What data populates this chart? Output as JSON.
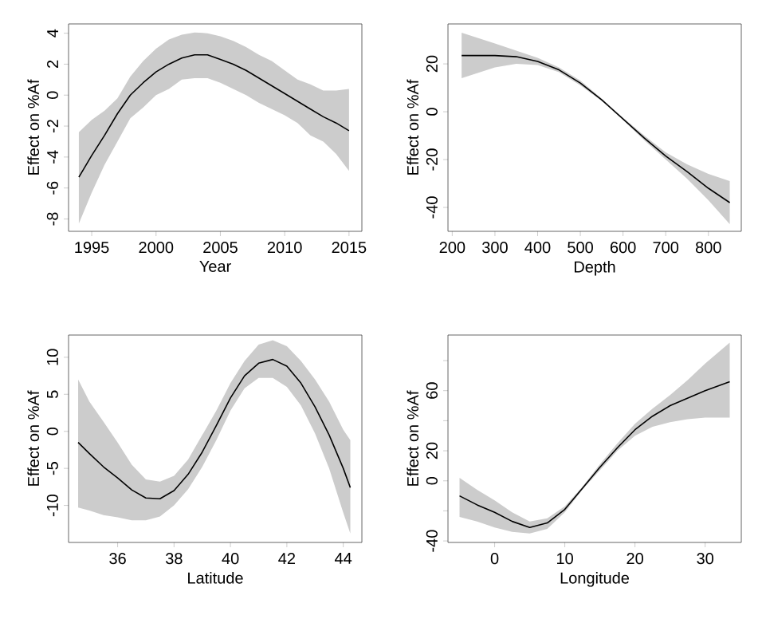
{
  "chart_data": [
    {
      "type": "line",
      "xlabel": "Year",
      "ylabel": "Effect on %Af",
      "xlim": [
        1993.2,
        2016
      ],
      "ylim": [
        -8.8,
        4.6
      ],
      "xticks": [
        1995,
        2000,
        2005,
        2010,
        2015
      ],
      "yticks": [
        -8,
        -6,
        -4,
        -2,
        0,
        2,
        4
      ],
      "series": [
        {
          "color": "#000000",
          "x": [
            1994,
            1995,
            1996,
            1997,
            1998,
            1999,
            2000,
            2001,
            2002,
            2003,
            2004,
            2005,
            2006,
            2007,
            2008,
            2009,
            2010,
            2011,
            2012,
            2013,
            2014,
            2015
          ],
          "values": [
            -5.3,
            -3.9,
            -2.6,
            -1.2,
            0,
            0.8,
            1.5,
            2.0,
            2.4,
            2.6,
            2.6,
            2.3,
            2.0,
            1.6,
            1.1,
            0.6,
            0.1,
            -0.4,
            -0.9,
            -1.4,
            -1.8,
            -2.3
          ],
          "upper": [
            -2.4,
            -1.6,
            -1.0,
            -0.2,
            1.2,
            2.2,
            3.0,
            3.6,
            3.9,
            4.05,
            4.0,
            3.8,
            3.5,
            3.1,
            2.6,
            2.2,
            1.6,
            1.0,
            0.7,
            0.3,
            0.3,
            0.4
          ],
          "lower": [
            -8.3,
            -6.3,
            -4.5,
            -3.0,
            -1.5,
            -0.8,
            0.0,
            0.4,
            1.0,
            1.1,
            1.1,
            0.8,
            0.4,
            0.0,
            -0.5,
            -0.9,
            -1.3,
            -1.8,
            -2.6,
            -3.0,
            -3.8,
            -4.9
          ]
        }
      ]
    },
    {
      "type": "line",
      "xlabel": "Depth",
      "ylabel": "Effect on %Af",
      "xlim": [
        190,
        877
      ],
      "ylim": [
        -50,
        36.7
      ],
      "xticks": [
        200,
        300,
        400,
        500,
        600,
        700,
        800
      ],
      "yticks": [
        -40,
        -20,
        0,
        20
      ],
      "series": [
        {
          "color": "#000000",
          "x": [
            222,
            300,
            350,
            400,
            450,
            500,
            550,
            600,
            650,
            700,
            750,
            800,
            850
          ],
          "values": [
            23.5,
            23.5,
            23,
            21,
            17.5,
            12,
            5,
            -3,
            -11,
            -18.5,
            -25,
            -32,
            -38
          ],
          "upper": [
            33,
            28.5,
            25.5,
            22.5,
            18.5,
            13,
            5.5,
            -2.5,
            -10,
            -17,
            -22,
            -26,
            -29
          ],
          "lower": [
            14,
            18.5,
            20,
            19.5,
            16.5,
            11,
            4.5,
            -3.5,
            -12,
            -20,
            -28,
            -37,
            -47
          ]
        }
      ]
    },
    {
      "type": "line",
      "xlabel": "Latitude",
      "ylabel": "Effect on %Af",
      "xlim": [
        34.26,
        44.66
      ],
      "ylim": [
        -15,
        13
      ],
      "xticks": [
        36,
        38,
        40,
        42,
        44
      ],
      "yticks": [
        -10,
        -5,
        0,
        5,
        10
      ],
      "series": [
        {
          "color": "#000000",
          "x": [
            34.6,
            35,
            35.5,
            36,
            36.5,
            37,
            37.5,
            38,
            38.5,
            39,
            39.5,
            40,
            40.5,
            41,
            41.5,
            42,
            42.5,
            43,
            43.5,
            44,
            44.25
          ],
          "values": [
            -1.5,
            -3,
            -4.8,
            -6.3,
            -7.9,
            -9,
            -9.1,
            -8,
            -5.8,
            -2.8,
            0.8,
            4.5,
            7.5,
            9.2,
            9.7,
            8.8,
            6.5,
            3.3,
            -0.5,
            -5,
            -7.6
          ],
          "upper": [
            7,
            4,
            1.3,
            -1.5,
            -4.5,
            -6.5,
            -6.8,
            -6,
            -3.8,
            -0.5,
            2.8,
            6.5,
            9.5,
            11.7,
            12.3,
            11.5,
            9.5,
            7,
            4,
            0.2,
            -1.2
          ],
          "lower": [
            -10.3,
            -10.7,
            -11.3,
            -11.6,
            -12,
            -12,
            -11.5,
            -10,
            -7.8,
            -4.8,
            -1.2,
            2.8,
            5.8,
            7.2,
            7.2,
            6,
            3.5,
            -0.3,
            -5,
            -11,
            -13.8
          ]
        }
      ]
    },
    {
      "type": "line",
      "xlabel": "Longitude",
      "ylabel": "Effect on %Af",
      "xlim": [
        -6.65,
        35.15
      ],
      "ylim": [
        -41,
        97
      ],
      "xticks": [
        0,
        10,
        20,
        30
      ],
      "yticks": [
        -40,
        {
          "value": -20,
          "label": null
        },
        0,
        20,
        {
          "value": 40,
          "label": null
        },
        60,
        {
          "value": 80,
          "label": null
        }
      ],
      "series": [
        {
          "color": "#000000",
          "x": [
            -5,
            -2.5,
            0,
            2.5,
            5,
            7.5,
            10,
            12.5,
            15,
            17.5,
            20,
            22.5,
            25,
            27.5,
            30,
            33.5
          ],
          "values": [
            -10,
            -16,
            -21,
            -27,
            -31,
            -28,
            -19,
            -5,
            9,
            22,
            34,
            43,
            50,
            55,
            60,
            66
          ],
          "upper": [
            2,
            -6,
            -13,
            -21,
            -27,
            -25,
            -17,
            -4,
            11,
            25,
            38,
            48,
            57,
            67,
            78,
            92
          ],
          "lower": [
            -24,
            -27,
            -31,
            -34,
            -35,
            -32,
            -21,
            -6,
            7,
            20,
            30,
            36,
            39,
            41,
            42,
            42
          ]
        }
      ]
    }
  ]
}
